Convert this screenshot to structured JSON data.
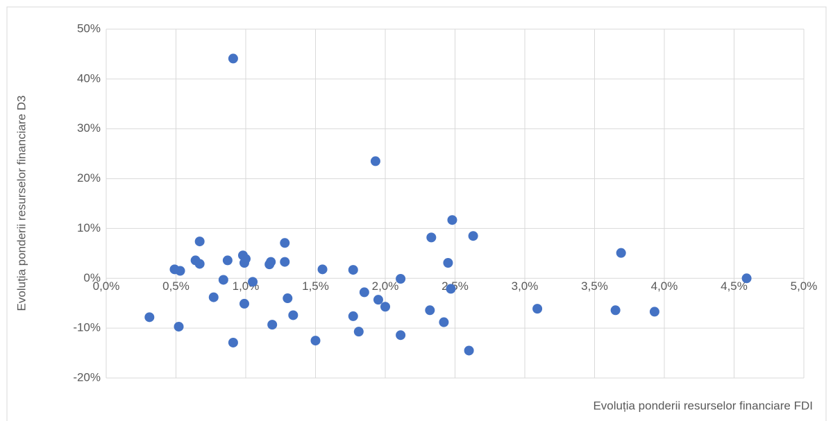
{
  "chart_data": {
    "type": "scatter",
    "x_label": "Evoluția ponderii resurselor financiare FDI",
    "y_label": "Evoluția ponderii resurselor financiare D3",
    "color": "#4472c4",
    "x": [
      0.31,
      0.49,
      0.53,
      0.52,
      0.64,
      0.67,
      0.67,
      0.77,
      0.84,
      0.87,
      0.91,
      0.91,
      0.98,
      0.99,
      1.0,
      0.99,
      1.05,
      1.17,
      1.18,
      1.19,
      1.28,
      1.28,
      1.3,
      1.34,
      1.5,
      1.55,
      1.77,
      1.77,
      1.81,
      1.85,
      1.93,
      1.95,
      2.0,
      2.11,
      2.11,
      2.32,
      2.33,
      2.42,
      2.45,
      2.47,
      2.48,
      2.6,
      2.63,
      3.09,
      3.65,
      3.69,
      3.93,
      4.59
    ],
    "values": [
      -7.8,
      1.8,
      1.5,
      -9.7,
      3.6,
      7.4,
      2.9,
      -3.8,
      -0.3,
      3.6,
      44.1,
      -12.9,
      4.6,
      3.1,
      3.9,
      -5.1,
      -0.7,
      2.8,
      3.3,
      -9.3,
      7.1,
      3.3,
      -4.0,
      -7.4,
      -12.5,
      1.8,
      1.7,
      -7.6,
      -10.7,
      -2.8,
      23.5,
      -4.3,
      -5.7,
      -0.1,
      -11.4,
      -6.4,
      8.2,
      -8.8,
      3.1,
      -2.1,
      11.7,
      -14.5,
      8.5,
      -6.1,
      -6.4,
      5.1,
      -6.7,
      0.0
    ],
    "xlim": [
      0,
      5
    ],
    "xticks": [
      {
        "value": 0,
        "label": "0,0%"
      },
      {
        "value": 0.5,
        "label": "0,5%"
      },
      {
        "value": 1,
        "label": "1,0%"
      },
      {
        "value": 1.5,
        "label": "1,5%"
      },
      {
        "value": 2,
        "label": "2,0%"
      },
      {
        "value": 2.5,
        "label": "2,5%"
      },
      {
        "value": 3,
        "label": "3,0%"
      },
      {
        "value": 3.5,
        "label": "3,5%"
      },
      {
        "value": 4,
        "label": "4,0%"
      },
      {
        "value": 4.5,
        "label": "4,5%"
      },
      {
        "value": 5,
        "label": "5,0%"
      }
    ],
    "ylim": [
      -20,
      50
    ],
    "yticks": [
      {
        "value": -20,
        "label": "-20%"
      },
      {
        "value": -10,
        "label": "-10%"
      },
      {
        "value": 0,
        "label": "0%"
      },
      {
        "value": 10,
        "label": "10%"
      },
      {
        "value": 20,
        "label": "20%"
      },
      {
        "value": 30,
        "label": "30%"
      },
      {
        "value": 40,
        "label": "40%"
      },
      {
        "value": 50,
        "label": "50%"
      }
    ],
    "grid": true
  }
}
